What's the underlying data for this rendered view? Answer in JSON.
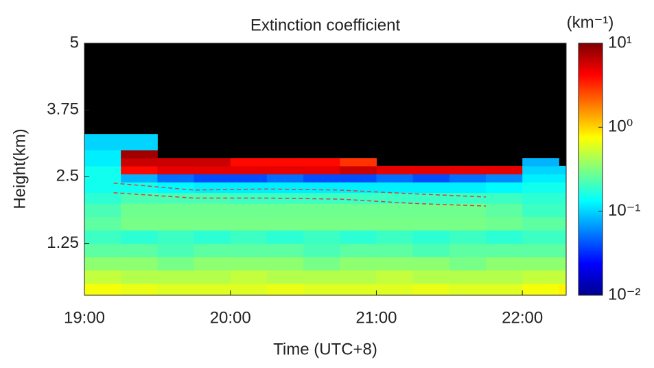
{
  "chart_data": {
    "type": "heatmap",
    "title": "Extinction coefficient",
    "x_label": "Time (UTC+8)",
    "y_label": "Height(km)",
    "colorbar_label": "(km⁻¹)",
    "x_bins": [
      19,
      19.25,
      19.5,
      19.75,
      20,
      20.25,
      20.5,
      20.75,
      21,
      21.25,
      21.5,
      21.75,
      22,
      22.25,
      22.3
    ],
    "y_bins": [
      0.28,
      0.5,
      0.75,
      1.0,
      1.25,
      1.5,
      1.75,
      2.0,
      2.2,
      2.4,
      2.55,
      2.7,
      2.85,
      3.0,
      3.3,
      5
    ],
    "values": [
      [
        0.7,
        0.65,
        0.6,
        0.6,
        0.6,
        0.65,
        0.6,
        0.6,
        0.6,
        0.65,
        0.6,
        0.6,
        0.7,
        0.8
      ],
      [
        0.5,
        0.45,
        0.45,
        0.45,
        0.5,
        0.45,
        0.45,
        0.45,
        0.5,
        0.45,
        0.45,
        0.45,
        0.5,
        0.5
      ],
      [
        0.35,
        0.35,
        0.3,
        0.35,
        0.35,
        0.35,
        0.3,
        0.35,
        0.35,
        0.35,
        0.3,
        0.35,
        0.35,
        0.35
      ],
      [
        0.25,
        0.25,
        0.22,
        0.25,
        0.25,
        0.25,
        0.22,
        0.25,
        0.25,
        0.22,
        0.25,
        0.25,
        0.25,
        0.25
      ],
      [
        0.2,
        0.18,
        0.2,
        0.18,
        0.2,
        0.18,
        0.2,
        0.18,
        0.2,
        0.18,
        0.2,
        0.18,
        0.2,
        0.2
      ],
      [
        0.25,
        0.3,
        0.3,
        0.3,
        0.3,
        0.3,
        0.3,
        0.3,
        0.3,
        0.3,
        0.3,
        0.28,
        0.25,
        0.25
      ],
      [
        0.22,
        0.28,
        0.28,
        0.28,
        0.28,
        0.28,
        0.28,
        0.28,
        0.28,
        0.28,
        0.28,
        0.25,
        0.2,
        0.2
      ],
      [
        0.18,
        0.22,
        0.22,
        0.22,
        0.2,
        0.2,
        0.2,
        0.2,
        0.2,
        0.2,
        0.2,
        0.2,
        0.18,
        0.18
      ],
      [
        0.15,
        0.15,
        0.13,
        0.12,
        0.12,
        0.12,
        0.12,
        0.12,
        0.12,
        0.12,
        0.12,
        0.13,
        0.15,
        0.15
      ],
      [
        0.15,
        0.08,
        0.05,
        0.04,
        0.04,
        0.05,
        0.04,
        0.04,
        0.05,
        0.04,
        0.05,
        0.06,
        0.12,
        0.12
      ],
      [
        0.15,
        4,
        5,
        5,
        5,
        5,
        5,
        6,
        5,
        5,
        5,
        5,
        0.1,
        0.1
      ],
      [
        0.12,
        6,
        6,
        6,
        4,
        4,
        4,
        3,
        null,
        null,
        null,
        null,
        0.08,
        null
      ],
      [
        0.12,
        8,
        null,
        null,
        null,
        null,
        null,
        null,
        null,
        null,
        null,
        null,
        null,
        null
      ],
      [
        0.1,
        0.1,
        null,
        null,
        null,
        null,
        null,
        null,
        null,
        null,
        null,
        null,
        null,
        null
      ],
      [
        null,
        null,
        null,
        null,
        null,
        null,
        null,
        null,
        null,
        null,
        null,
        null,
        null,
        null
      ]
    ],
    "boundary_lines": [
      {
        "color": "#d9413a",
        "x": [
          19.2,
          19.75,
          20.25,
          20.75,
          21.25,
          21.75
        ],
        "values": [
          2.38,
          2.25,
          2.27,
          2.25,
          2.18,
          2.12
        ]
      },
      {
        "color": "#d9413a",
        "x": [
          19.2,
          19.75,
          20.25,
          20.75,
          21.25,
          21.75
        ],
        "values": [
          2.2,
          2.1,
          2.1,
          2.08,
          2.0,
          1.95
        ]
      }
    ],
    "xlim": [
      19,
      22.3
    ],
    "xticks": [
      {
        "value": 19,
        "label": "19:00"
      },
      {
        "value": 20,
        "label": "20:00"
      },
      {
        "value": 21,
        "label": "21:00"
      },
      {
        "value": 22,
        "label": "22:00"
      }
    ],
    "ylim": [
      0.28,
      5
    ],
    "yticks": [
      1.25,
      2.5,
      3.75,
      5
    ],
    "colorbar_scale": "log",
    "clim": [
      0.01,
      10
    ],
    "cticks": [
      {
        "value": 0.01,
        "label": "10⁻²"
      },
      {
        "value": 0.1,
        "label": "10⁻¹"
      },
      {
        "value": 1,
        "label": "10⁰"
      },
      {
        "value": 10,
        "label": "10¹"
      }
    ],
    "colormap": "jet"
  }
}
